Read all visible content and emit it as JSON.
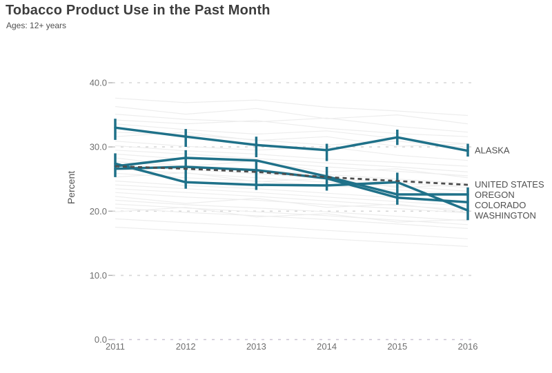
{
  "header": {
    "title": "Tobacco Product Use in the Past Month",
    "subtitle": "Ages: 12+ years"
  },
  "colors": {
    "accent_teal": "#1f7189",
    "us_dashed": "#4d4d4d",
    "grid": "#d6d6d6",
    "grid_zero": "#c9c3d2",
    "tick": "#b0b0b0",
    "background_line": "#ededed",
    "title_text": "#3d3d3d",
    "axis_text": "#6e6e6e"
  },
  "chart_data": {
    "type": "line",
    "title": "Tobacco Product Use in the Past Month",
    "subtitle": "Ages: 12+ years",
    "xlabel": "",
    "ylabel": "Percent",
    "x": [
      2011,
      2012,
      2013,
      2014,
      2015,
      2016
    ],
    "ylim": [
      0,
      40
    ],
    "yticks": [
      {
        "v": 0,
        "label": "0.0"
      },
      {
        "v": 10,
        "label": "10.0"
      },
      {
        "v": 20,
        "label": "20.0"
      },
      {
        "v": 30,
        "label": "30.0"
      },
      {
        "v": 40,
        "label": "40.0"
      }
    ],
    "grid": true,
    "legend_position": "right-of-line-endpoints",
    "series": [
      {
        "name": "ALASKA",
        "style": "solid",
        "values": [
          33.0,
          31.6,
          30.3,
          29.5,
          31.5,
          29.4
        ]
      },
      {
        "name": "UNITED STATES",
        "style": "dashed",
        "values": [
          27.0,
          26.6,
          26.1,
          25.3,
          24.7,
          24.1
        ]
      },
      {
        "name": "OREGON",
        "style": "solid",
        "values": [
          27.0,
          28.3,
          27.9,
          25.4,
          22.6,
          22.6
        ]
      },
      {
        "name": "COLORADO",
        "style": "solid",
        "values": [
          26.6,
          26.9,
          26.4,
          25.1,
          22.1,
          21.4
        ]
      },
      {
        "name": "WASHINGTON",
        "style": "solid",
        "values": [
          27.4,
          24.5,
          24.1,
          24.0,
          24.5,
          20.1
        ]
      }
    ],
    "error_bars": [
      {
        "year": 2011,
        "upper": [
          31.1,
          34.4
        ],
        "lower": [
          25.3,
          29.0
        ]
      },
      {
        "year": 2012,
        "upper": [
          30.0,
          32.8
        ],
        "lower": [
          23.5,
          29.5
        ]
      },
      {
        "year": 2013,
        "upper": [
          28.4,
          31.6
        ],
        "lower": [
          23.3,
          27.8
        ]
      },
      {
        "year": 2014,
        "upper": [
          27.8,
          30.5
        ],
        "lower": [
          23.2,
          26.9
        ]
      },
      {
        "year": 2015,
        "upper": [
          30.3,
          32.7
        ],
        "lower": [
          21.0,
          26.0
        ]
      },
      {
        "year": 2016,
        "upper": [
          28.5,
          30.5
        ],
        "lower": [
          18.6,
          23.7
        ]
      }
    ],
    "background_series": [
      [
        37.6,
        36.9,
        37.3,
        36.2,
        35.6,
        34.9
      ],
      [
        36.3,
        35.1,
        36.0,
        34.4,
        35.0,
        33.6
      ],
      [
        35.1,
        34.3,
        33.9,
        34.5,
        33.2,
        32.3
      ],
      [
        34.2,
        33.6,
        34.1,
        32.9,
        32.1,
        31.6
      ],
      [
        33.6,
        32.7,
        32.0,
        32.5,
        31.3,
        30.5
      ],
      [
        32.3,
        31.9,
        31.1,
        30.3,
        30.9,
        29.9
      ],
      [
        31.6,
        32.3,
        31.0,
        31.6,
        30.1,
        30.5
      ],
      [
        30.9,
        30.1,
        29.5,
        30.0,
        28.7,
        27.9
      ],
      [
        30.2,
        29.4,
        28.9,
        28.1,
        27.6,
        27.0
      ],
      [
        29.5,
        28.9,
        28.2,
        27.5,
        26.9,
        26.1
      ],
      [
        28.9,
        28.1,
        27.7,
        26.9,
        26.2,
        25.5
      ],
      [
        28.3,
        27.0,
        27.8,
        26.1,
        26.6,
        25.2
      ],
      [
        27.7,
        26.9,
        26.4,
        25.7,
        25.0,
        24.3
      ],
      [
        27.1,
        26.5,
        25.8,
        25.1,
        24.4,
        23.7
      ],
      [
        26.5,
        25.9,
        25.2,
        24.5,
        23.9,
        23.1
      ],
      [
        25.9,
        25.2,
        24.7,
        24.0,
        23.3,
        22.6
      ],
      [
        25.3,
        26.0,
        24.6,
        25.1,
        23.7,
        24.1
      ],
      [
        24.7,
        24.0,
        23.5,
        22.8,
        22.1,
        21.4
      ],
      [
        24.1,
        23.5,
        22.9,
        22.2,
        21.5,
        20.8
      ],
      [
        23.5,
        22.9,
        22.3,
        21.6,
        20.9,
        20.2
      ],
      [
        22.9,
        22.2,
        21.7,
        21.0,
        20.4,
        19.7
      ],
      [
        22.3,
        21.2,
        22.0,
        20.6,
        21.1,
        19.8
      ],
      [
        21.7,
        21.0,
        20.5,
        19.9,
        19.2,
        18.5
      ],
      [
        21.1,
        20.5,
        19.9,
        19.3,
        18.6,
        17.9
      ],
      [
        20.5,
        19.8,
        19.3,
        18.7,
        18.0,
        17.3
      ],
      [
        19.9,
        20.6,
        19.1,
        19.6,
        18.3,
        18.7
      ],
      [
        18.8,
        18.2,
        17.7,
        17.0,
        16.4,
        15.7
      ],
      [
        17.5,
        16.9,
        16.3,
        15.7,
        15.1,
        14.5
      ]
    ]
  }
}
